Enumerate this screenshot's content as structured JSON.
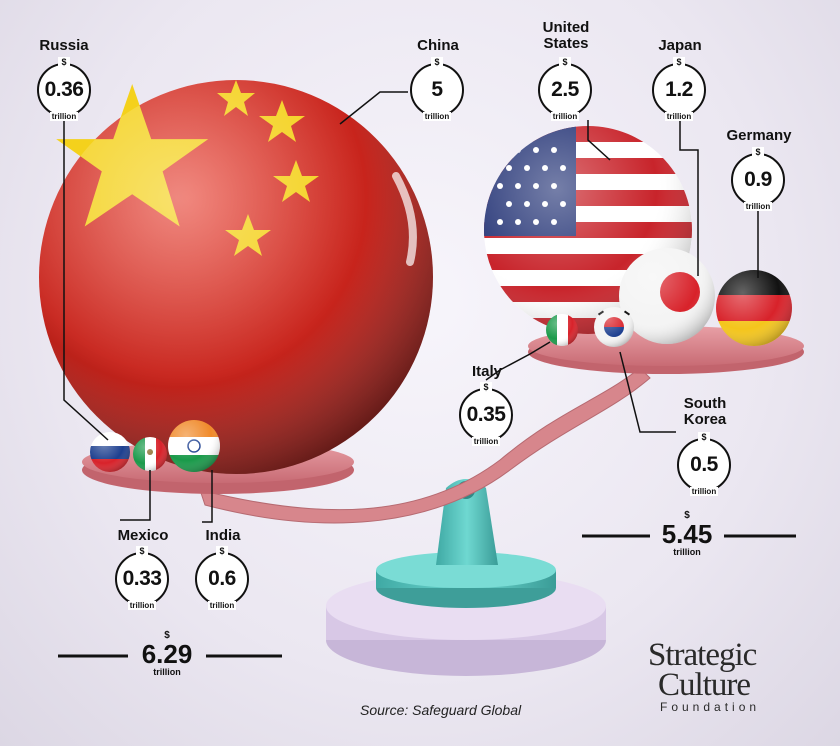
{
  "currency_symbol": "$",
  "unit": "trillion",
  "countries": [
    {
      "name": "Russia",
      "value": "0.36"
    },
    {
      "name": "China",
      "value": "5"
    },
    {
      "name": "United States",
      "value": "2.5"
    },
    {
      "name": "Japan",
      "value": "1.2"
    },
    {
      "name": "Germany",
      "value": "0.9"
    },
    {
      "name": "Italy",
      "value": "0.35"
    },
    {
      "name": "South Korea",
      "value": "0.5"
    },
    {
      "name": "Mexico",
      "value": "0.33"
    },
    {
      "name": "India",
      "value": "0.6"
    }
  ],
  "totals": {
    "left": "6.29",
    "right": "5.45"
  },
  "source": "Source: Safeguard Global",
  "logo": {
    "line1": "Strategic",
    "line2": "Culture",
    "line3": "Foundation"
  },
  "colors": {
    "china_red": "#c8241c",
    "star_yellow": "#f4d11c",
    "tray_pink": "#d97f86",
    "stand_teal": "#5cc6c0",
    "base_lilac": "#d8c8e6"
  }
}
